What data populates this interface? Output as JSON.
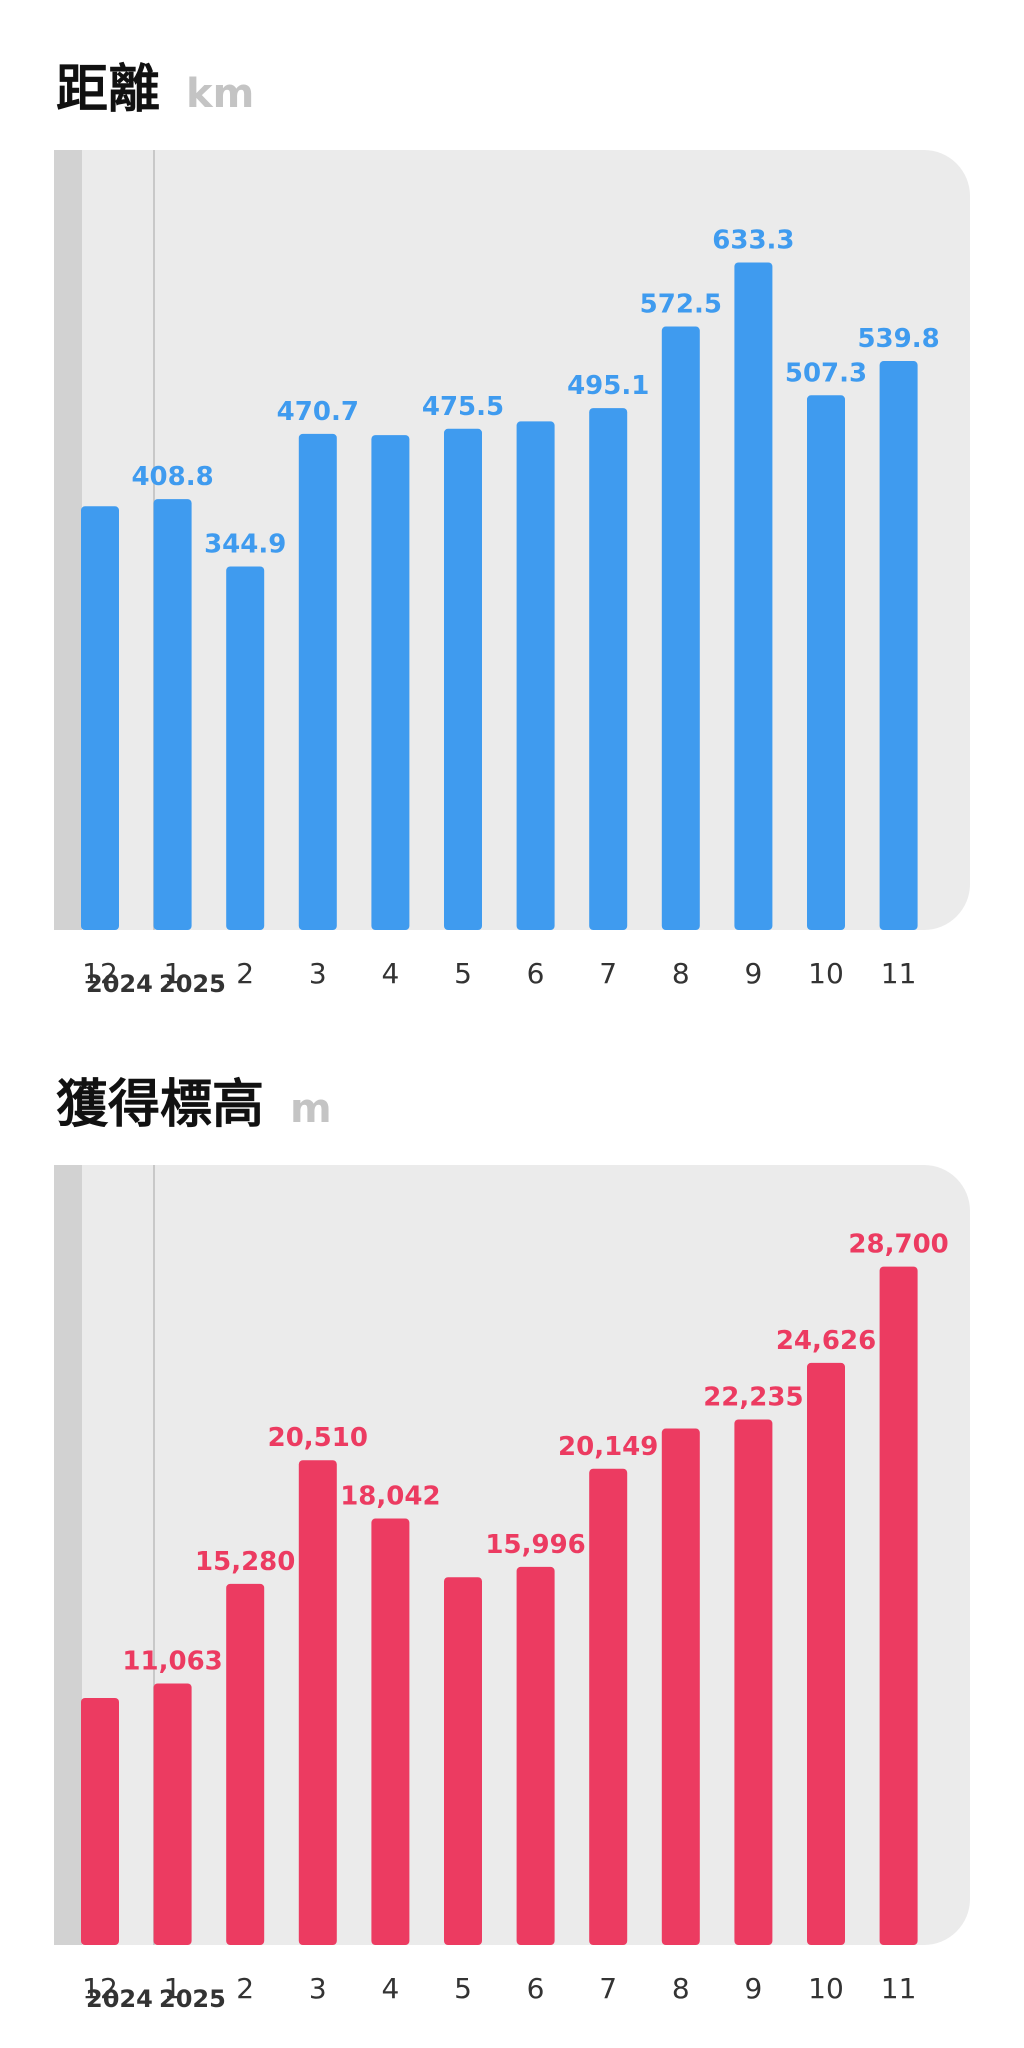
{
  "charts": [
    {
      "title": "距離",
      "unit": "km",
      "color": "#3f9bef",
      "year_labels": [
        "2024",
        "2025"
      ],
      "x_labels": [
        "12",
        "1",
        "2",
        "3",
        "4",
        "5",
        "6",
        "7",
        "8",
        "9",
        "10",
        "11"
      ],
      "data_labels": [
        "",
        "408.8",
        "344.9",
        "470.7",
        "",
        "475.5",
        "",
        "495.1",
        "572.5",
        "633.3",
        "507.3",
        "539.8"
      ]
    },
    {
      "title": "獲得標高",
      "unit": "m",
      "color": "#ec3b61",
      "year_labels": [
        "2024",
        "2025"
      ],
      "x_labels": [
        "12",
        "1",
        "2",
        "3",
        "4",
        "5",
        "6",
        "7",
        "8",
        "9",
        "10",
        "11"
      ],
      "data_labels": [
        "",
        "11,063",
        "15,280",
        "20,510",
        "18,042",
        "",
        "15,996",
        "20,149",
        "",
        "22,235",
        "24,626",
        "28,700"
      ]
    }
  ],
  "chart_data": [
    {
      "type": "bar",
      "title": "距離",
      "ylabel": "km",
      "categories": [
        "12",
        "1",
        "2",
        "3",
        "4",
        "5",
        "6",
        "7",
        "8",
        "9",
        "10",
        "11"
      ],
      "values": [
        402.0,
        408.8,
        344.9,
        470.7,
        469.5,
        475.5,
        482.5,
        495.1,
        572.5,
        633.3,
        507.3,
        539.8
      ],
      "ylim": [
        0,
        740
      ]
    },
    {
      "type": "bar",
      "title": "獲得標高",
      "ylabel": "m",
      "categories": [
        "12",
        "1",
        "2",
        "3",
        "4",
        "5",
        "6",
        "7",
        "8",
        "9",
        "10",
        "11"
      ],
      "values": [
        10450,
        11063,
        15280,
        20510,
        18042,
        15560,
        15996,
        20149,
        21850,
        22235,
        24626,
        28700
      ],
      "ylim": [
        0,
        33000
      ]
    }
  ]
}
